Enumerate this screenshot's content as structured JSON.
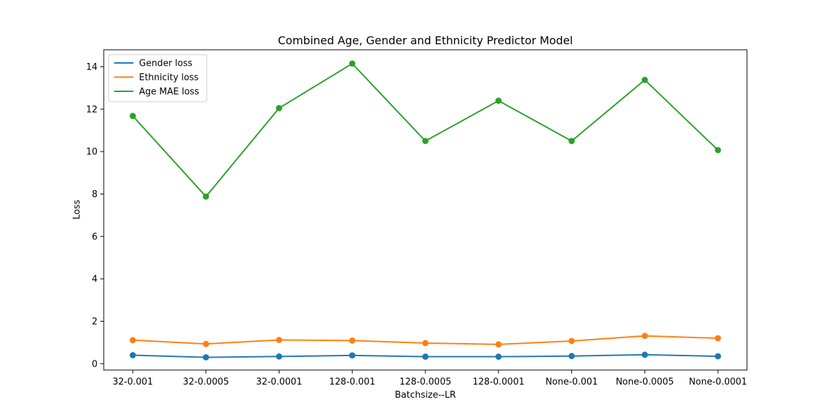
{
  "chart_data": {
    "type": "line",
    "title": "Combined Age, Gender and Ethnicity Predictor Model",
    "xlabel": "Batchsize--LR",
    "ylabel": "Loss",
    "categories": [
      "32-0.001",
      "32-0.0005",
      "32-0.0001",
      "128-0.001",
      "128-0.0005",
      "128-0.0001",
      "None-0.001",
      "None-0.0005",
      "None-0.0001"
    ],
    "ylim": [
      -0.3,
      14.8
    ],
    "yticks": [
      0,
      2,
      4,
      6,
      8,
      10,
      12,
      14
    ],
    "grid": false,
    "legend_position": "upper-left",
    "markers": true,
    "series": [
      {
        "name": "Gender loss",
        "color": "#1f77b4",
        "values": [
          0.4,
          0.3,
          0.34,
          0.39,
          0.33,
          0.33,
          0.36,
          0.42,
          0.35
        ]
      },
      {
        "name": "Ethnicity loss",
        "color": "#ff7f0e",
        "values": [
          1.11,
          0.93,
          1.12,
          1.09,
          0.97,
          0.91,
          1.07,
          1.31,
          1.2
        ]
      },
      {
        "name": "Age MAE loss",
        "color": "#2ca02c",
        "values": [
          11.68,
          7.88,
          12.05,
          14.15,
          10.5,
          12.4,
          10.5,
          13.38,
          10.07
        ]
      }
    ]
  }
}
